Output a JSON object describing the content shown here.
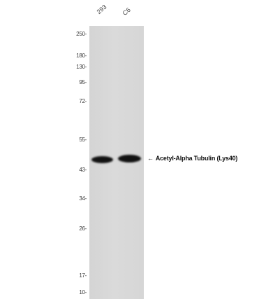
{
  "lanes": [
    "293",
    "C6"
  ],
  "markers": [
    "250",
    "180",
    "130",
    "95",
    "72",
    "55",
    "43",
    "34",
    "26",
    "17",
    "10"
  ],
  "band_annotation": "Acetyl-Alpha Tubulin (Lys40)",
  "arrow_glyph": "←"
}
